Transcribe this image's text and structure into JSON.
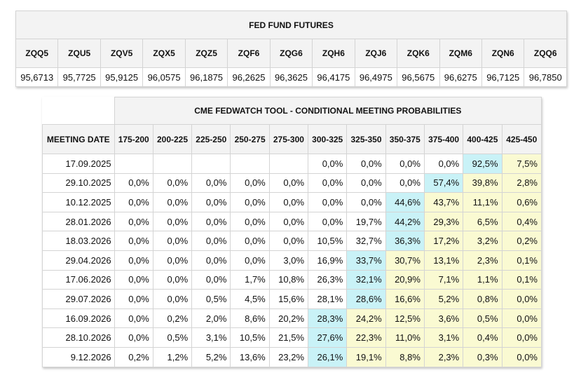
{
  "futures": {
    "title": "FED FUND FUTURES",
    "codes": [
      "ZQQ5",
      "ZQU5",
      "ZQV5",
      "ZQX5",
      "ZQZ5",
      "ZQF6",
      "ZQG6",
      "ZQH6",
      "ZQJ6",
      "ZQK6",
      "ZQM6",
      "ZQN6",
      "ZQQ6"
    ],
    "prices": [
      "95,6713",
      "95,7725",
      "95,9125",
      "96,0575",
      "96,1875",
      "96,2625",
      "96,3625",
      "96,4175",
      "96,4975",
      "96,5675",
      "96,6275",
      "96,7125",
      "96,7850"
    ]
  },
  "probabilities": {
    "title": "CME FEDWATCH TOOL - CONDITIONAL MEETING PROBABILITIES",
    "date_header": "MEETING DATE",
    "ranges": [
      "175-200",
      "200-225",
      "225-250",
      "250-275",
      "275-300",
      "300-325",
      "325-350",
      "350-375",
      "375-400",
      "400-425",
      "425-450"
    ],
    "colors": {
      "highlight": "#c9f2f7",
      "tail": "#fafad2"
    },
    "rows": [
      {
        "date": "17.09.2025",
        "values": [
          "",
          "",
          "",
          "",
          "",
          "0,0%",
          "0,0%",
          "0,0%",
          "0,0%",
          "92,5%",
          "7,5%"
        ]
      },
      {
        "date": "29.10.2025",
        "values": [
          "0,0%",
          "0,0%",
          "0,0%",
          "0,0%",
          "0,0%",
          "0,0%",
          "0,0%",
          "0,0%",
          "57,4%",
          "39,8%",
          "2,8%"
        ]
      },
      {
        "date": "10.12.2025",
        "values": [
          "0,0%",
          "0,0%",
          "0,0%",
          "0,0%",
          "0,0%",
          "0,0%",
          "0,0%",
          "44,6%",
          "43,7%",
          "11,1%",
          "0,6%"
        ]
      },
      {
        "date": "28.01.2026",
        "values": [
          "0,0%",
          "0,0%",
          "0,0%",
          "0,0%",
          "0,0%",
          "0,0%",
          "19,7%",
          "44,2%",
          "29,3%",
          "6,5%",
          "0,4%"
        ]
      },
      {
        "date": "18.03.2026",
        "values": [
          "0,0%",
          "0,0%",
          "0,0%",
          "0,0%",
          "0,0%",
          "10,5%",
          "32,7%",
          "36,3%",
          "17,2%",
          "3,2%",
          "0,2%"
        ]
      },
      {
        "date": "29.04.2026",
        "values": [
          "0,0%",
          "0,0%",
          "0,0%",
          "0,0%",
          "3,0%",
          "16,9%",
          "33,7%",
          "30,7%",
          "13,1%",
          "2,3%",
          "0,1%"
        ]
      },
      {
        "date": "17.06.2026",
        "values": [
          "0,0%",
          "0,0%",
          "0,0%",
          "1,7%",
          "10,8%",
          "26,3%",
          "32,1%",
          "20,9%",
          "7,1%",
          "1,1%",
          "0,1%"
        ]
      },
      {
        "date": "29.07.2026",
        "values": [
          "0,0%",
          "0,0%",
          "0,5%",
          "4,5%",
          "15,6%",
          "28,1%",
          "28,6%",
          "16,6%",
          "5,2%",
          "0,8%",
          "0,0%"
        ]
      },
      {
        "date": "16.09.2026",
        "values": [
          "0,0%",
          "0,2%",
          "2,0%",
          "8,6%",
          "20,2%",
          "28,3%",
          "24,2%",
          "12,5%",
          "3,6%",
          "0,5%",
          "0,0%"
        ]
      },
      {
        "date": "28.10.2026",
        "values": [
          "0,0%",
          "0,5%",
          "3,1%",
          "10,5%",
          "21,5%",
          "27,6%",
          "22,3%",
          "11,0%",
          "3,1%",
          "0,4%",
          "0,0%"
        ]
      },
      {
        "date": "9.12.2026",
        "values": [
          "0,2%",
          "1,2%",
          "5,2%",
          "13,6%",
          "23,2%",
          "26,1%",
          "19,1%",
          "8,8%",
          "2,3%",
          "0,3%",
          "0,0%"
        ]
      }
    ],
    "highlight_col": [
      9,
      8,
      7,
      7,
      7,
      6,
      6,
      6,
      5,
      5,
      5
    ],
    "tail_from_col": [
      10,
      9,
      8,
      8,
      8,
      7,
      7,
      7,
      6,
      6,
      6
    ]
  }
}
